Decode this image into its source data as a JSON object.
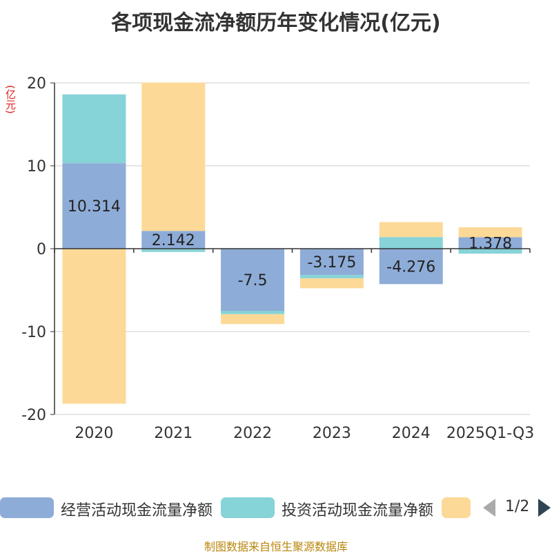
{
  "title": "各项现金流净额历年变化情况(亿元)",
  "unit_label": "(亿元)",
  "source": "制图数据来自恒生聚源数据库",
  "colors": {
    "operating": "#8eacd8",
    "investing": "#86d3d8",
    "financing": "#fdd998",
    "axis": "#333333",
    "grid": "#cccccc"
  },
  "legend": {
    "items": [
      {
        "label": "经营活动现金流量净额"
      },
      {
        "label": "投资活动现金流量净额"
      },
      {
        "label": ""
      }
    ],
    "page": "1/2"
  },
  "chart_data": {
    "type": "bar",
    "stacked": true,
    "categories": [
      "2020",
      "2021",
      "2022",
      "2023",
      "2024",
      "2025Q1-Q3"
    ],
    "series": [
      {
        "name": "经营活动现金流量净额",
        "values": [
          10.314,
          2.142,
          -7.5,
          -3.175,
          -4.276,
          1.378
        ]
      },
      {
        "name": "投资活动现金流量净额",
        "values": [
          8.3,
          -0.4,
          -0.4,
          -0.4,
          1.4,
          -0.6
        ]
      },
      {
        "values": [
          -18.7,
          17.9,
          -1.2,
          -1.2,
          1.8,
          1.2
        ]
      }
    ],
    "data_labels": [
      "10.314",
      "2.142",
      "-7.5",
      "-3.175",
      "-4.276",
      "1.378"
    ],
    "ylim": [
      -20,
      20
    ],
    "yticks": [
      -20,
      -10,
      0,
      10,
      20
    ],
    "grid": true,
    "legend_position": "bottom"
  }
}
